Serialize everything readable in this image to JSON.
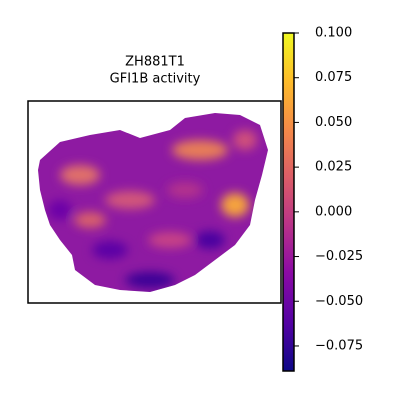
{
  "chart_data": {
    "type": "spatial",
    "title": "ZH881T1",
    "subtitle": "GFI1B activity",
    "colorbar": {
      "colormap": "plasma",
      "lim": [
        -0.089,
        0.1
      ],
      "ticks": [
        {
          "value": 0.1,
          "label": "0.100"
        },
        0.075,
        {
          "value": 0.05,
          "label": "0.050"
        },
        0.025,
        {
          "value": 0,
          "label": "0.000"
        },
        {
          "value": -0.025,
          "label": "−0.025"
        },
        {
          "value": -0.05,
          "label": "−0.050"
        },
        {
          "value": -0.075,
          "label": "−0.075"
        }
      ]
    }
  }
}
